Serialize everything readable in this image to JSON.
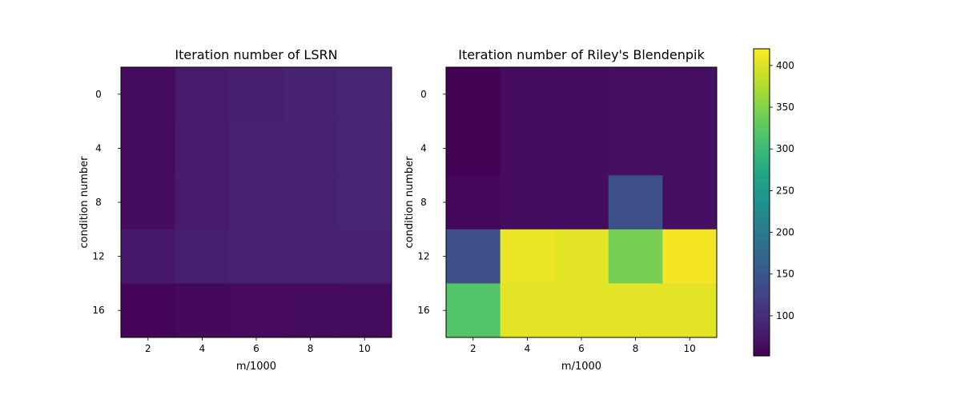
{
  "chart_data": [
    {
      "type": "heatmap",
      "title": "Iteration number of LSRN",
      "xlabel": "m/1000",
      "ylabel": "condition number",
      "x": [
        2,
        4,
        6,
        8,
        10
      ],
      "y": [
        0,
        4,
        8,
        12,
        16
      ],
      "xticks": [
        "2",
        "4",
        "6",
        "8",
        "10"
      ],
      "yticks": [
        "0",
        "4",
        "8",
        "12",
        "16"
      ],
      "values": [
        [
          62,
          78,
          84,
          88,
          91
        ],
        [
          62,
          80,
          86,
          88,
          90
        ],
        [
          64,
          80,
          86,
          88,
          90
        ],
        [
          76,
          84,
          87,
          88,
          86
        ],
        [
          56,
          60,
          61,
          62,
          62
        ]
      ],
      "colorscale": "viridis",
      "zlim": [
        52,
        420
      ],
      "grid": false
    },
    {
      "type": "heatmap",
      "title": "Iteration number of Riley's Blendenpik",
      "xlabel": "m/1000",
      "ylabel": "condition number",
      "x": [
        2,
        4,
        6,
        8,
        10
      ],
      "y": [
        0,
        4,
        8,
        12,
        16
      ],
      "xticks": [
        "2",
        "4",
        "6",
        "8",
        "10"
      ],
      "yticks": [
        "0",
        "4",
        "8",
        "12",
        "16"
      ],
      "values": [
        [
          52,
          62,
          64,
          66,
          68
        ],
        [
          52,
          62,
          64,
          66,
          68
        ],
        [
          58,
          62,
          64,
          140,
          68
        ],
        [
          140,
          410,
          405,
          345,
          415
        ],
        [
          320,
          405,
          405,
          405,
          405
        ]
      ],
      "colorscale": "viridis",
      "zlim": [
        52,
        420
      ],
      "grid": false
    }
  ],
  "colorbar": {
    "ticks": [
      "100",
      "150",
      "200",
      "250",
      "300",
      "350",
      "400"
    ]
  }
}
